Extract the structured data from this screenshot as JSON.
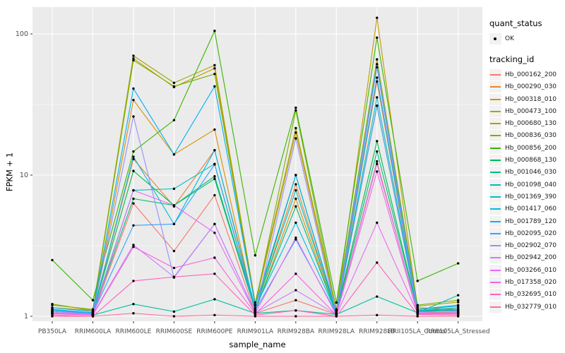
{
  "colors": {
    "panel_bg": "#EBEBEB",
    "grid": "#FFFFFF",
    "tick_text": "#4D4D4D",
    "axis_text": "#000000",
    "tick_mark": "#333333",
    "point": "#000000",
    "legend_key_bg": "#F2F2F2"
  },
  "chart_data": {
    "type": "line",
    "title": "",
    "xlabel": "sample_name",
    "ylabel": "FPKM + 1",
    "y_scale": "log10",
    "y_ticks": [
      1,
      10,
      100
    ],
    "y_minor_ticks": [
      3.162,
      31.62
    ],
    "ylim": [
      0.95,
      140
    ],
    "grid": "on",
    "legend_position": "right",
    "point_marker": "black-dot",
    "categories": [
      "PB350LA",
      "RRIM600LA",
      "RRIM600LE",
      "RRIM600SE",
      "RRIM600PE",
      "RRIM901LA",
      "RRIM928BA",
      "RRIM928LA",
      "RRIM928LB",
      "RRII105LA_Control",
      "RRII105LA_Stressed"
    ],
    "legend": {
      "quant_status_title": "quant_status",
      "quant_status_items": [
        {
          "label": "OK",
          "marker": "point"
        }
      ],
      "tracking_id_title": "tracking_id"
    },
    "series": [
      {
        "name": "Hb_000162_200",
        "color": "#F8766D",
        "values": [
          1.05,
          1.02,
          6.3,
          2.9,
          7.2,
          1.05,
          1.3,
          1.03,
          12.5,
          1.05,
          1.04
        ]
      },
      {
        "name": "Hb_000290_030",
        "color": "#EA8331",
        "values": [
          1.08,
          1.04,
          13,
          6.0,
          15,
          1.1,
          8.6,
          1.05,
          46,
          1.1,
          1.08
        ]
      },
      {
        "name": "Hb_000318_010",
        "color": "#D89000",
        "values": [
          1.06,
          1.03,
          34,
          14,
          21,
          1.08,
          6.8,
          1.04,
          31,
          1.08,
          1.06
        ]
      },
      {
        "name": "Hb_000473_100",
        "color": "#C09B00",
        "values": [
          1.15,
          1.1,
          67,
          42,
          57,
          1.2,
          20,
          1.1,
          130,
          1.15,
          1.12
        ]
      },
      {
        "name": "Hb_000680_130",
        "color": "#A3A500",
        "values": [
          1.2,
          1.12,
          70,
          45,
          60,
          1.25,
          21.5,
          1.12,
          66,
          1.18,
          1.26
        ]
      },
      {
        "name": "Hb_000836_030",
        "color": "#7CAE00",
        "values": [
          1.22,
          1.1,
          65,
          42.5,
          52,
          1.2,
          28.7,
          1.1,
          58,
          1.2,
          1.3
        ]
      },
      {
        "name": "Hb_000856_200",
        "color": "#39B600",
        "values": [
          2.5,
          1.3,
          14.7,
          24.5,
          105,
          2.7,
          30,
          1.25,
          94,
          1.78,
          2.37
        ]
      },
      {
        "name": "Hb_000868_130",
        "color": "#00BB4E",
        "values": [
          1.1,
          1.06,
          10.7,
          6.1,
          9.8,
          1.12,
          10,
          1.06,
          17.4,
          1.1,
          1.1
        ]
      },
      {
        "name": "Hb_001046_030",
        "color": "#00BF7D",
        "values": [
          1.12,
          1.05,
          6.8,
          6.1,
          9.4,
          1.1,
          6.0,
          1.05,
          14.7,
          1.1,
          1.12
        ]
      },
      {
        "name": "Hb_001098_040",
        "color": "#00C1A3",
        "values": [
          1.05,
          1.02,
          1.22,
          1.08,
          1.32,
          1.05,
          1.1,
          1.03,
          1.38,
          1.06,
          1.41
        ]
      },
      {
        "name": "Hb_001369_390",
        "color": "#00BFC4",
        "values": [
          1.1,
          1.05,
          7.8,
          8.0,
          12,
          1.12,
          7.8,
          1.06,
          35.5,
          1.12,
          1.2
        ]
      },
      {
        "name": "Hb_001417_060",
        "color": "#00BAE0",
        "values": [
          1.12,
          1.06,
          13.5,
          4.5,
          15,
          1.15,
          4.6,
          1.06,
          61,
          1.1,
          1.15
        ]
      },
      {
        "name": "Hb_001789_120",
        "color": "#00B0F6",
        "values": [
          1.15,
          1.08,
          41,
          14,
          42.5,
          1.2,
          10,
          1.08,
          49,
          1.12,
          1.18
        ]
      },
      {
        "name": "Hb_002095_020",
        "color": "#35A2FF",
        "values": [
          1.1,
          1.05,
          4.4,
          4.5,
          11.9,
          1.1,
          3.5,
          1.05,
          31,
          1.08,
          1.1
        ]
      },
      {
        "name": "Hb_002902_070",
        "color": "#9590FF",
        "values": [
          1.08,
          1.04,
          26,
          1.88,
          4.5,
          1.06,
          18.2,
          1.04,
          58,
          1.06,
          1.06
        ]
      },
      {
        "name": "Hb_002942_200",
        "color": "#C77CFF",
        "values": [
          1.06,
          1.03,
          3.2,
          1.9,
          4.5,
          1.06,
          1.53,
          1.03,
          12,
          1.06,
          1.06
        ]
      },
      {
        "name": "Hb_003266_010",
        "color": "#E76BF3",
        "values": [
          1.05,
          1.02,
          7.8,
          6.1,
          3.9,
          1.05,
          3.6,
          1.02,
          4.6,
          1.05,
          1.05
        ]
      },
      {
        "name": "Hb_017358_020",
        "color": "#FA62DB",
        "values": [
          1.04,
          1.02,
          3.1,
          2.2,
          2.6,
          1.04,
          2.0,
          1.02,
          10.6,
          1.04,
          1.04
        ]
      },
      {
        "name": "Hb_032695_010",
        "color": "#FF62BC",
        "values": [
          1.02,
          1.0,
          1.78,
          1.9,
          2.0,
          1.02,
          1.1,
          1.0,
          2.4,
          1.03,
          1.02
        ]
      },
      {
        "name": "Hb_032779_010",
        "color": "#FF6A98",
        "values": [
          1.0,
          1.0,
          1.05,
          1.0,
          1.02,
          1.0,
          1.0,
          1.0,
          1.02,
          1.0,
          1.0
        ]
      }
    ]
  }
}
